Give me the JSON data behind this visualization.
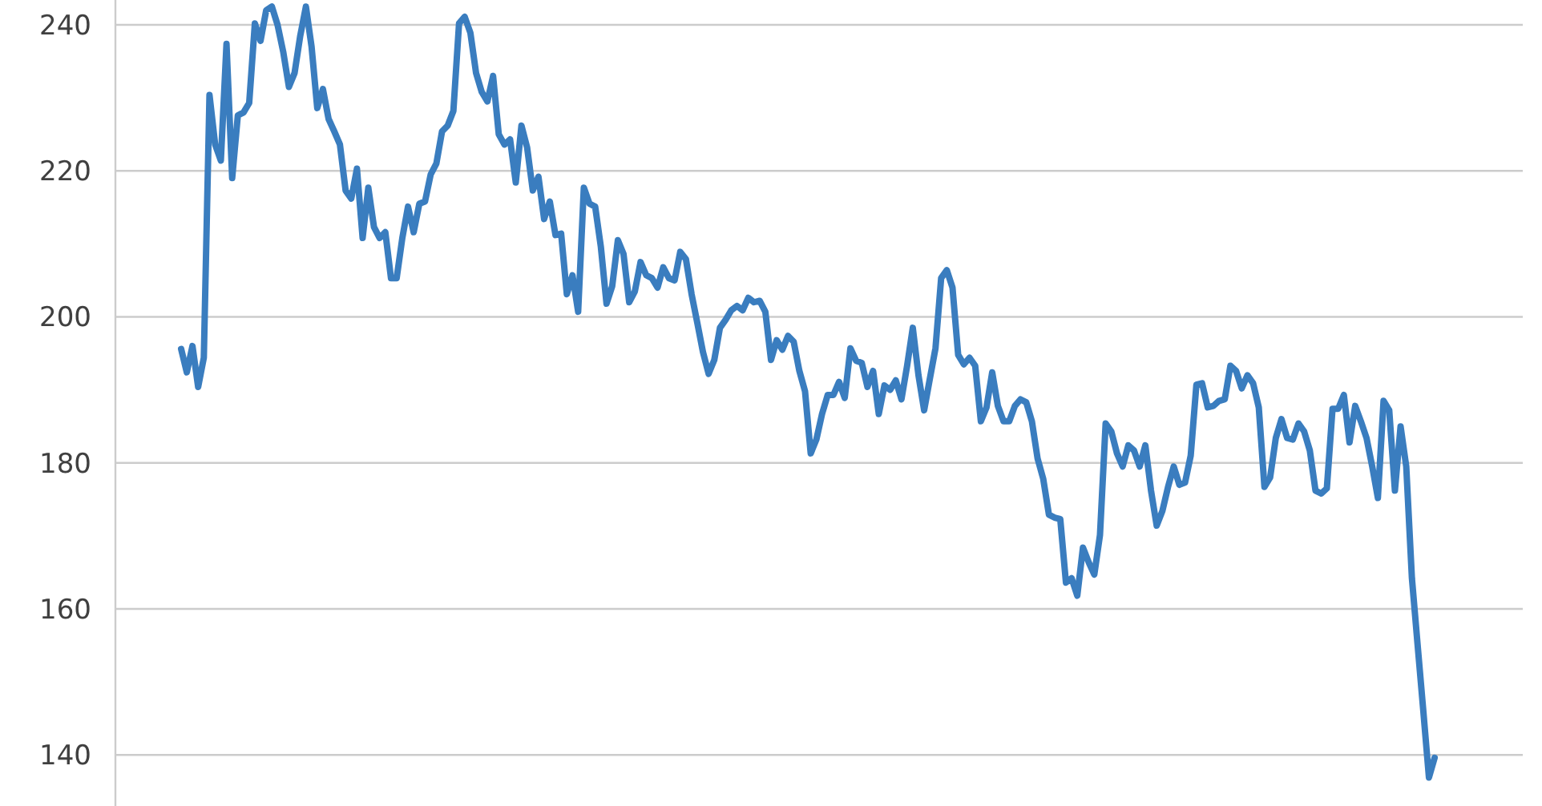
{
  "chart_data": {
    "type": "line",
    "categories": [
      null,
      null,
      null,
      null,
      null,
      null,
      null,
      null,
      null,
      null,
      null,
      null,
      null,
      null,
      null,
      null,
      null,
      null,
      null,
      null,
      null,
      null,
      null,
      null,
      null,
      null,
      null,
      null,
      null,
      null,
      null,
      null,
      null,
      null,
      null,
      null,
      null,
      null,
      null,
      null,
      null,
      null,
      null,
      null,
      null,
      null,
      null,
      null,
      null,
      null,
      null,
      null,
      null,
      null,
      null,
      null,
      null,
      null,
      null,
      null,
      null,
      null,
      null,
      null,
      null,
      null,
      null,
      null,
      null,
      null,
      null,
      null,
      null,
      null,
      null,
      null,
      null,
      null,
      null,
      null,
      null,
      null,
      null,
      null,
      null,
      null,
      null,
      null,
      null,
      null,
      null,
      null,
      null,
      null,
      null,
      null,
      null,
      null,
      null,
      null,
      null,
      null,
      null,
      null,
      null,
      null,
      null,
      null,
      null,
      null,
      null,
      null,
      null,
      null,
      null,
      null,
      null,
      null,
      null,
      null,
      null,
      null,
      null,
      null,
      null,
      null,
      null,
      null,
      null,
      null,
      null,
      null,
      null,
      null,
      null,
      null,
      null,
      null,
      null,
      null,
      null,
      null,
      null,
      null,
      null,
      null,
      null,
      null,
      null,
      null,
      null,
      null,
      null,
      null,
      null,
      null,
      null,
      null,
      null,
      null,
      null,
      null,
      null,
      null,
      null,
      null,
      null,
      null,
      null,
      null,
      null,
      null,
      null,
      null,
      null,
      null,
      null,
      null,
      null,
      null,
      null,
      null,
      null,
      null,
      null,
      null,
      null,
      null,
      null,
      null,
      null,
      null,
      null,
      null,
      null,
      null,
      null,
      null,
      null,
      null,
      null,
      null,
      null,
      null,
      null,
      null,
      null,
      null,
      null,
      null,
      null,
      null,
      null,
      null,
      null,
      null,
      null,
      null,
      null,
      null,
      null,
      null
    ],
    "series": [
      {
        "color": "#3a7dbf",
        "values": [
          195.6,
          192.4,
          196,
          190.4,
          194.4,
          230.4,
          223.6,
          221.4,
          237.4,
          219,
          227.6,
          228,
          229.3,
          240.2,
          237.8,
          242,
          242.5,
          240,
          236.3,
          231.5,
          233.4,
          238.5,
          242.5,
          237,
          228.6,
          231.2,
          227.1,
          225.4,
          223.6,
          217.3,
          216.2,
          220.3,
          210.8,
          217.7,
          212.3,
          210.8,
          211.6,
          205.3,
          205.3,
          210.8,
          215.1,
          211.6,
          215.5,
          215.8,
          219.5,
          221,
          225.4,
          226.2,
          228.2,
          240.2,
          241.1,
          238.9,
          233.4,
          230.8,
          229.5,
          233,
          225,
          223.6,
          224.3,
          218.4,
          226.2,
          223.2,
          217.3,
          219.2,
          213.4,
          215.8,
          211.2,
          211.4,
          203.1,
          205.7,
          200.7,
          217.7,
          215.5,
          215.1,
          209.6,
          201.8,
          204.2,
          210.5,
          208.6,
          202,
          203.5,
          207.5,
          205.7,
          205.3,
          204,
          206.8,
          205.3,
          205,
          208.9,
          207.9,
          203.1,
          199.2,
          195.2,
          192.2,
          194.1,
          198.5,
          199.6,
          200.9,
          201.5,
          200.9,
          202.6,
          202,
          202.2,
          200.7,
          194.1,
          196.8,
          195.5,
          197.4,
          196.6,
          192.6,
          189.8,
          181.3,
          183.2,
          186.7,
          189.3,
          189.3,
          191.1,
          188.9,
          195.7,
          194,
          193.7,
          190.4,
          192.6,
          186.7,
          190.6,
          190,
          191.3,
          188.7,
          193.3,
          198.5,
          192,
          187.2,
          191.5,
          195.7,
          205.3,
          206.4,
          204,
          194.8,
          193.5,
          194.4,
          193.3,
          185.7,
          187.6,
          192.4,
          187.8,
          185.7,
          185.7,
          187.8,
          188.7,
          188.3,
          185.7,
          180.6,
          177.8,
          172.9,
          172.5,
          172.3,
          163.6,
          164.2,
          161.8,
          168.4,
          166.4,
          164.7,
          170.1,
          185.4,
          184.3,
          181.3,
          179.5,
          182.4,
          181.7,
          179.5,
          182.4,
          176.2,
          171.4,
          173.4,
          176.7,
          179.5,
          177,
          177.3,
          181,
          190.7,
          190.9,
          187.6,
          187.8,
          188.5,
          188.7,
          193.3,
          192.6,
          190.2,
          192,
          190.9,
          187.6,
          176.7,
          178,
          183.4,
          186,
          183.4,
          183.2,
          185.4,
          184.3,
          181.7,
          176.2,
          175.8,
          176.5,
          187.4,
          187.4,
          189.3,
          182.8,
          187.8,
          185.7,
          183.4,
          179.5,
          175.2,
          188.5,
          187.2,
          176.2,
          185,
          179.5,
          164.2,
          155.1,
          146.1,
          136.9,
          139.6
        ]
      }
    ],
    "ylim": [
      133,
      243.4
    ],
    "yticks": [
      140,
      160,
      180,
      200,
      220,
      240
    ],
    "grid": "y",
    "tick_labels": "y"
  }
}
